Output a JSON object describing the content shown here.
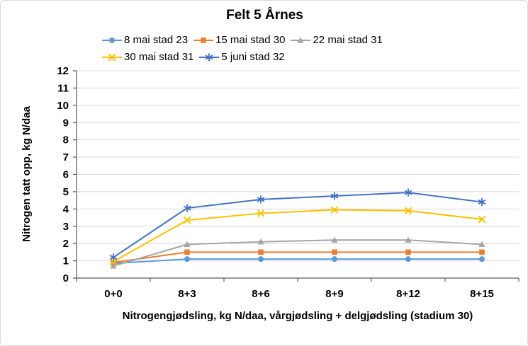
{
  "chart_data": {
    "type": "line",
    "title": "Felt 5 Årnes",
    "xlabel": "Nitrogengjødsling, kg N/daa, vårgjødsling + delgjødsling (stadium 30)",
    "ylabel": "Nitrogen tatt opp, kg N/daa",
    "categories": [
      "0+0",
      "8+3",
      "8+6",
      "8+9",
      "8+12",
      "8+15"
    ],
    "series": [
      {
        "name": "8 mai stad 23",
        "color": "#5B9BD5",
        "marker": "circle",
        "values": [
          0.85,
          1.1,
          1.1,
          1.1,
          1.1,
          1.1
        ]
      },
      {
        "name": "15 mai stad 30",
        "color": "#ED7D31",
        "marker": "square",
        "values": [
          0.9,
          1.5,
          1.5,
          1.5,
          1.5,
          1.5
        ]
      },
      {
        "name": "22 mai stad 31",
        "color": "#A5A5A5",
        "marker": "triangle",
        "values": [
          0.7,
          1.95,
          2.1,
          2.2,
          2.2,
          1.95
        ]
      },
      {
        "name": "30 mai stad 31",
        "color": "#FFC000",
        "marker": "x",
        "values": [
          0.95,
          3.35,
          3.75,
          3.95,
          3.9,
          3.4
        ]
      },
      {
        "name": "5 juni stad 32",
        "color": "#4472C4",
        "marker": "asterisk",
        "values": [
          1.2,
          4.05,
          4.55,
          4.75,
          4.95,
          4.4
        ]
      }
    ],
    "ylim": [
      0,
      12
    ],
    "yticks": [
      0,
      1,
      2,
      3,
      4,
      5,
      6,
      7,
      8,
      9,
      10,
      11,
      12
    ],
    "grid": true,
    "legend_position": "top",
    "legend_rows": [
      [
        0,
        1,
        2
      ],
      [
        3,
        4
      ]
    ],
    "colors": {
      "gridline": "#d9d9d9",
      "axis": "#595959",
      "text": "#000000",
      "frame_border": "#d9d9d9",
      "background": "#ffffff"
    }
  }
}
